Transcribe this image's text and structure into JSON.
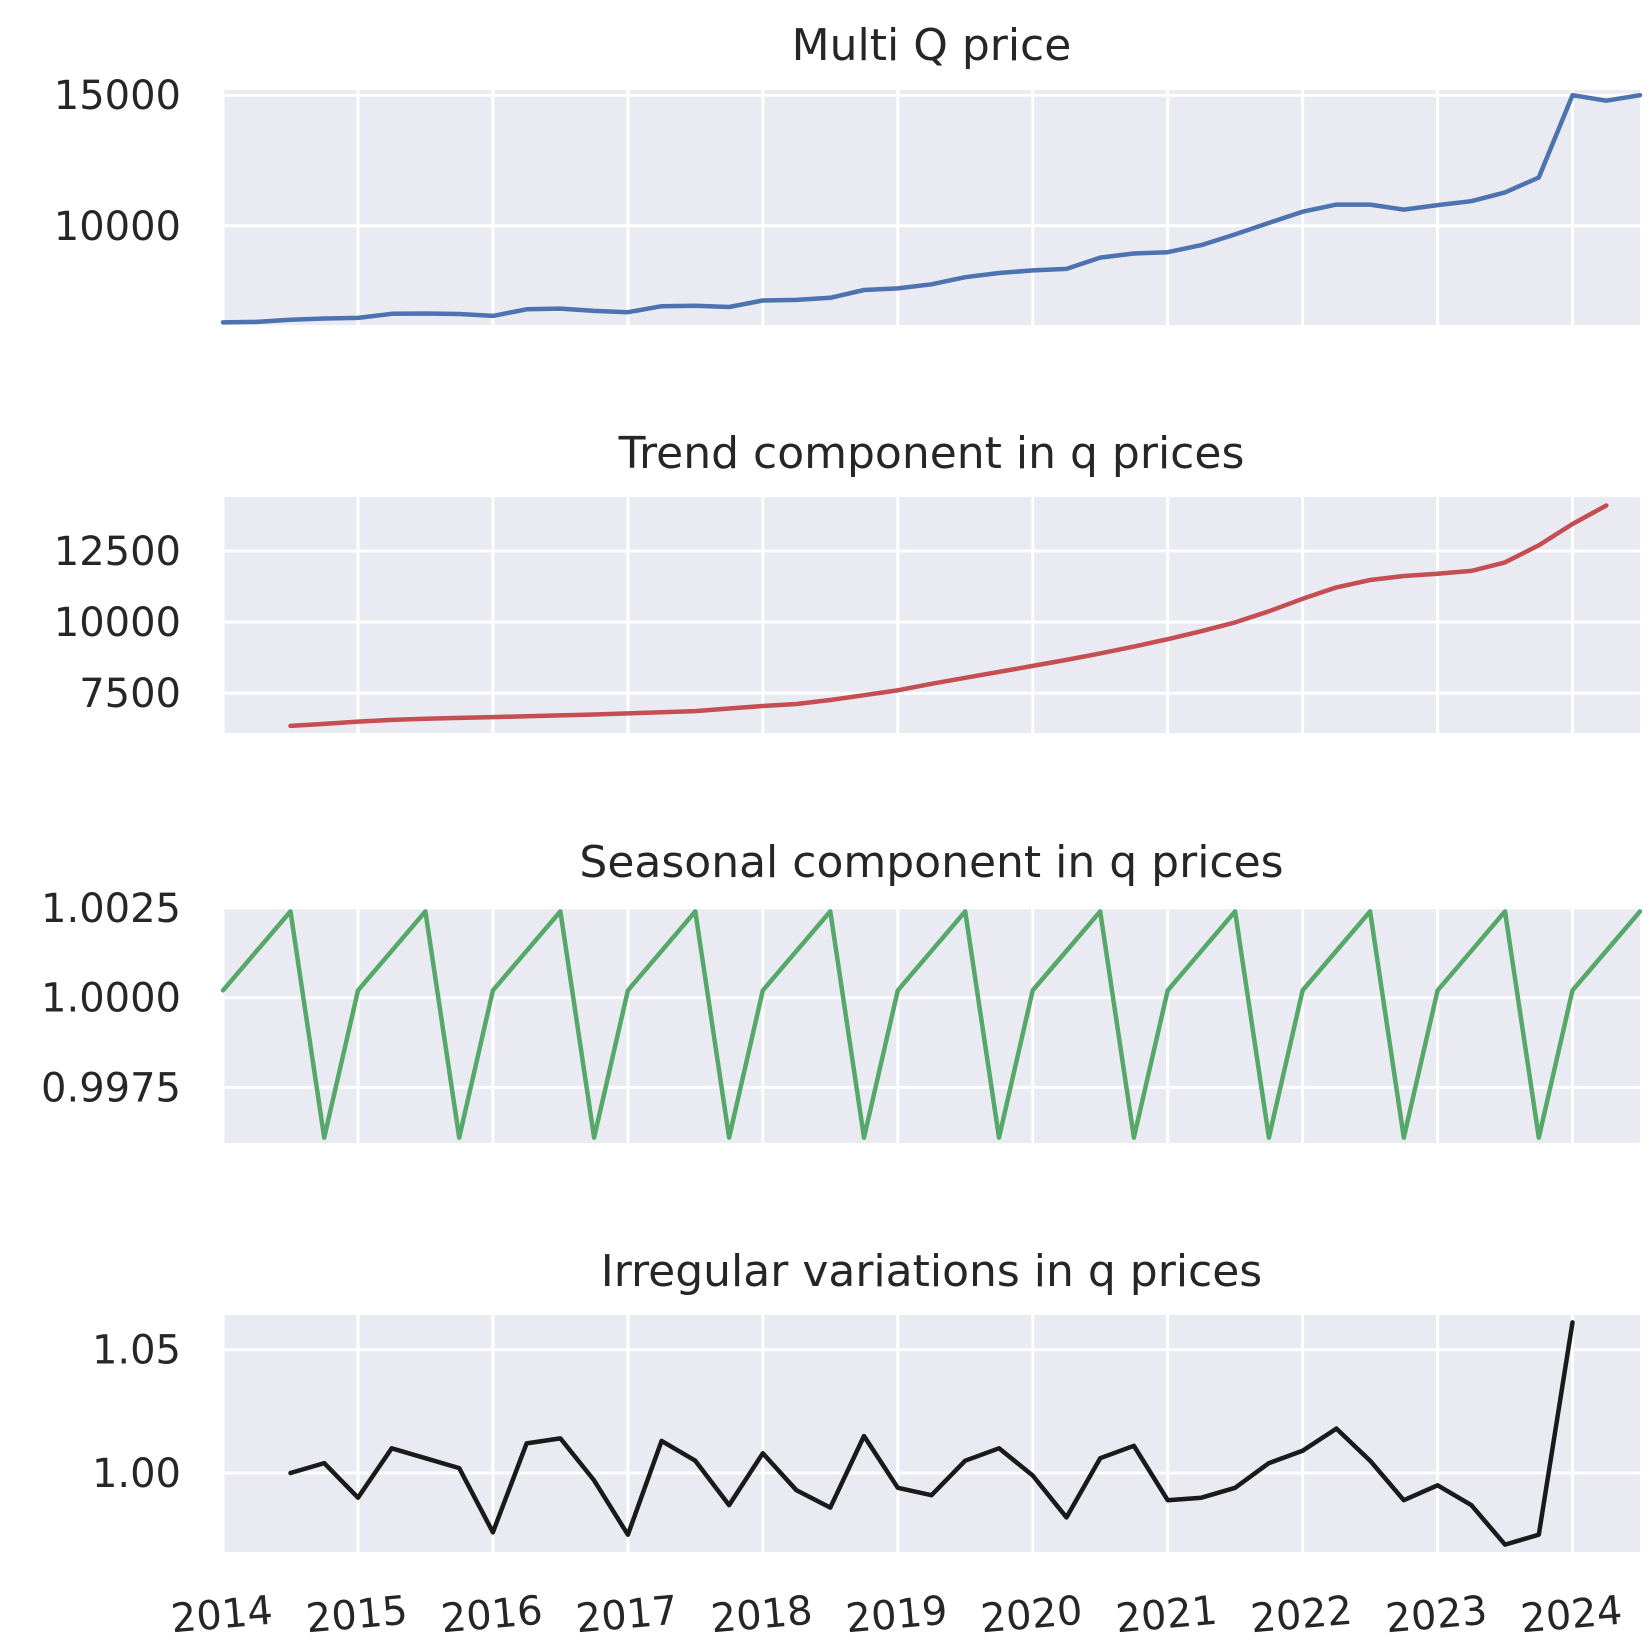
{
  "chart_data": [
    {
      "type": "line",
      "title": "Multi Q price",
      "color": "#4c72b0",
      "x_ticks": [
        "2014",
        "2015",
        "2016",
        "2017",
        "2018",
        "2019",
        "2020",
        "2021",
        "2022",
        "2023",
        "2024"
      ],
      "y_ticks": [
        10000,
        15000
      ],
      "y_tick_labels": [
        "10000",
        "15000"
      ],
      "xlim": [
        "2014-01-01",
        "2024-07-01"
      ],
      "ylim": [
        6200,
        15200
      ],
      "grid": true,
      "x_quarter_start": "2014-01-01",
      "values": [
        6300,
        6320,
        6400,
        6450,
        6470,
        6630,
        6640,
        6620,
        6550,
        6800,
        6830,
        6740,
        6690,
        6920,
        6940,
        6890,
        7140,
        7160,
        7240,
        7540,
        7600,
        7760,
        8030,
        8190,
        8290,
        8350,
        8780,
        8940,
        8990,
        9260,
        9670,
        10110,
        10540,
        10810,
        10810,
        10620,
        10790,
        10940,
        11280,
        11850,
        15000,
        14790,
        15000
      ]
    },
    {
      "type": "line",
      "title": "Trend component in q prices",
      "color": "#c44e52",
      "x_ticks": [
        "2014",
        "2015",
        "2016",
        "2017",
        "2018",
        "2019",
        "2020",
        "2021",
        "2022",
        "2023",
        "2024"
      ],
      "y_ticks": [
        7500,
        10000,
        12500
      ],
      "y_tick_labels": [
        "7500",
        "10000",
        "12500"
      ],
      "xlim": [
        "2014-01-01",
        "2024-07-01"
      ],
      "ylim": [
        6100,
        14400
      ],
      "grid": true,
      "x_quarter_start": "2014-07-01",
      "values": [
        6350,
        6420,
        6500,
        6560,
        6600,
        6630,
        6660,
        6690,
        6720,
        6750,
        6790,
        6830,
        6870,
        6960,
        7050,
        7120,
        7260,
        7430,
        7600,
        7830,
        8040,
        8250,
        8460,
        8670,
        8900,
        9140,
        9400,
        9680,
        9990,
        10380,
        10820,
        11220,
        11480,
        11620,
        11700,
        11800,
        12100,
        12700,
        13450,
        14100
      ]
    },
    {
      "type": "line",
      "title": "Seasonal component in q prices",
      "color": "#55a868",
      "x_ticks": [
        "2014",
        "2015",
        "2016",
        "2017",
        "2018",
        "2019",
        "2020",
        "2021",
        "2022",
        "2023",
        "2024"
      ],
      "y_ticks": [
        0.9975,
        1.0,
        1.0025
      ],
      "y_tick_labels": [
        "0.9975",
        "1.0000",
        "1.0025"
      ],
      "xlim": [
        "2014-01-01",
        "2024-07-01"
      ],
      "ylim": [
        0.99595,
        1.00255
      ],
      "grid": true,
      "x_quarter_start": "2014-01-01",
      "values": [
        1.0002,
        1.0013,
        1.0024,
        0.9961,
        1.0002,
        1.0013,
        1.0024,
        0.9961,
        1.0002,
        1.0013,
        1.0024,
        0.9961,
        1.0002,
        1.0013,
        1.0024,
        0.9961,
        1.0002,
        1.0013,
        1.0024,
        0.9961,
        1.0002,
        1.0013,
        1.0024,
        0.9961,
        1.0002,
        1.0013,
        1.0024,
        0.9961,
        1.0002,
        1.0013,
        1.0024,
        0.9961,
        1.0002,
        1.0013,
        1.0024,
        0.9961,
        1.0002,
        1.0013,
        1.0024,
        0.9961,
        1.0002,
        1.0013,
        1.0024
      ]
    },
    {
      "type": "line",
      "title": "Irregular variations in q prices",
      "color": "#1a1a1a",
      "x_ticks": [
        "2014",
        "2015",
        "2016",
        "2017",
        "2018",
        "2019",
        "2020",
        "2021",
        "2022",
        "2023",
        "2024"
      ],
      "x_tick_labels_shown": true,
      "y_ticks": [
        1.0,
        1.05
      ],
      "y_tick_labels": [
        "1.00",
        "1.05"
      ],
      "xlim": [
        "2014-01-01",
        "2024-07-01"
      ],
      "ylim": [
        0.968,
        1.064
      ],
      "grid": true,
      "x_quarter_start": "2014-07-01",
      "values": [
        1.0,
        1.004,
        0.99,
        1.01,
        1.006,
        1.002,
        0.976,
        1.012,
        1.014,
        0.997,
        0.975,
        1.013,
        1.005,
        0.987,
        1.008,
        0.993,
        0.986,
        1.015,
        0.994,
        0.991,
        1.005,
        1.01,
        0.999,
        0.982,
        1.006,
        1.011,
        0.989,
        0.99,
        0.994,
        1.004,
        1.009,
        1.018,
        1.005,
        0.989,
        0.995,
        0.987,
        0.971,
        0.975,
        1.061
      ]
    }
  ]
}
